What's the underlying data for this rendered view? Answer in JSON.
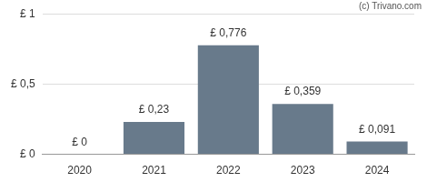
{
  "chart_data": {
    "type": "bar",
    "annotation": "(c) Trivano.com",
    "categories": [
      "2020",
      "2021",
      "2022",
      "2023",
      "2024"
    ],
    "values": [
      0,
      0.23,
      0.776,
      0.359,
      0.091
    ],
    "value_labels": [
      "£ 0",
      "£ 0,23",
      "£ 0,776",
      "£ 0,359",
      "£ 0,091"
    ],
    "data_labels": true,
    "color": "#687a8b",
    "ylim": [
      0,
      1
    ],
    "yticks": [
      {
        "value": 0,
        "label": "£ 0"
      },
      {
        "value": 0.5,
        "label": "£ 0,5"
      },
      {
        "value": 1,
        "label": "£ 1"
      }
    ],
    "grid": true
  }
}
